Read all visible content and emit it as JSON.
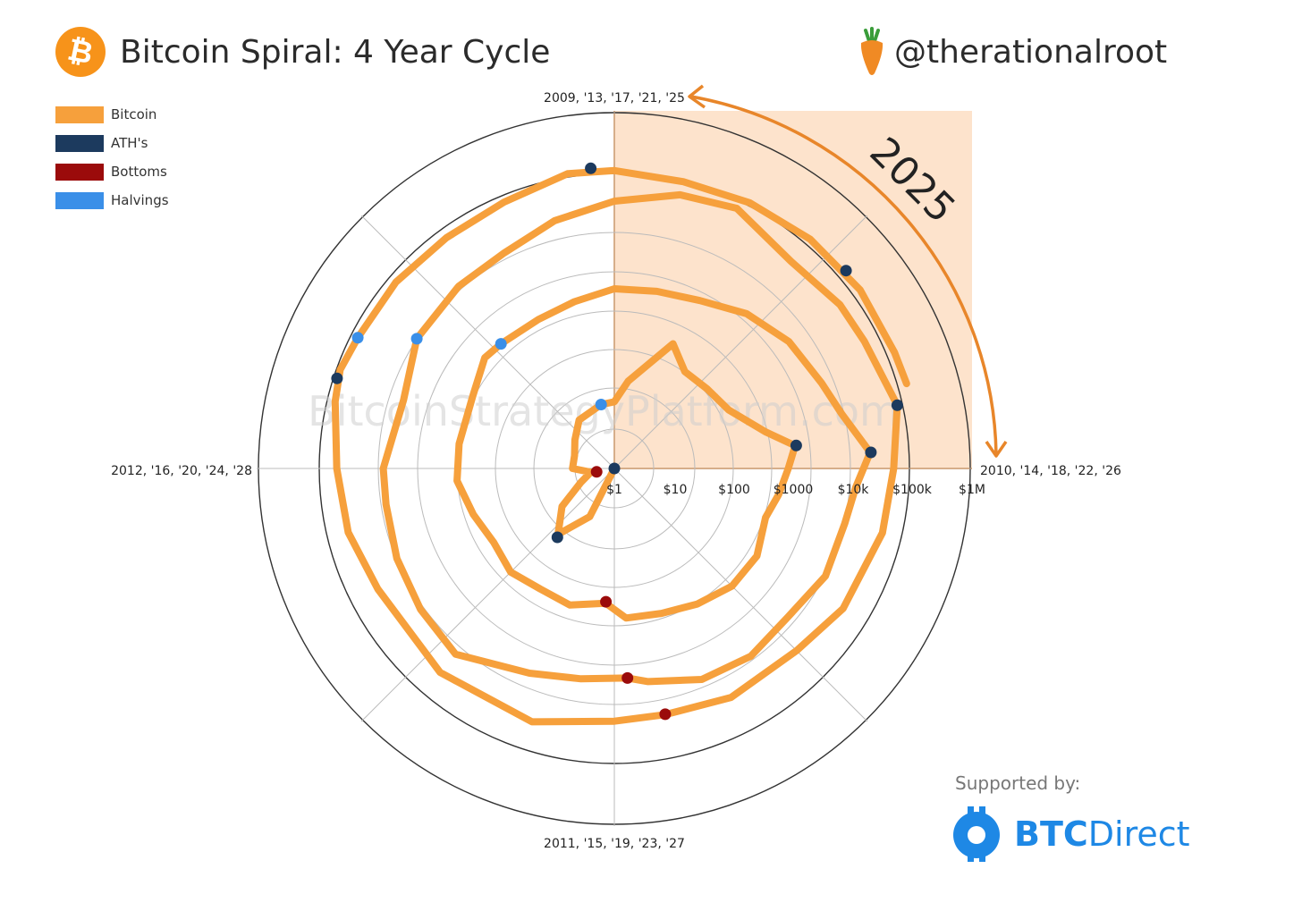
{
  "header": {
    "title": "Bitcoin Spiral: 4 Year Cycle",
    "handle": "@therationalroot",
    "btc_symbol": "₿"
  },
  "legend": [
    {
      "label": "Bitcoin",
      "color": "#f6a03c"
    },
    {
      "label": "ATH's",
      "color": "#1c3a5e"
    },
    {
      "label": "Bottoms",
      "color": "#9b0b0b"
    },
    {
      "label": "Halvings",
      "color": "#3a8fe8"
    }
  ],
  "footer": {
    "supported_by": "Supported by:",
    "brand_bold": "BTC",
    "brand_light": "Direct"
  },
  "chart_data": {
    "type": "polar-spiral",
    "title": "Bitcoin Spiral: 4 Year Cycle",
    "angular_labels": {
      "top": "2009, '13, '17, '21, '25",
      "right": "2010, '14, '18, '22, '26",
      "bottom": "2011, '15, '19, '23, '27",
      "left": "2012, '16, '20, '24, '28"
    },
    "radial_scale": "log",
    "radial_ticks": [
      "$1",
      "$10",
      "$100",
      "$1000",
      "$10k",
      "$100k",
      "$1M"
    ],
    "radial_tick_values": [
      1,
      10,
      100,
      1000,
      10000,
      100000,
      1000000
    ],
    "radial_min": 0.05,
    "annotation": "2025",
    "watermark": "BitcoinStrategyPlatform.com",
    "series": [
      {
        "name": "Bitcoin",
        "color": "#f6a03c",
        "points": [
          [
            2009.93,
            0.08
          ],
          [
            2010.0,
            0.09
          ],
          [
            2010.2,
            0.05
          ],
          [
            2010.4,
            0.07
          ],
          [
            2010.55,
            0.08
          ],
          [
            2010.7,
            0.2
          ],
          [
            2010.85,
            0.25
          ],
          [
            2011.0,
            0.3
          ],
          [
            2011.15,
            0.9
          ],
          [
            2011.3,
            8
          ],
          [
            2011.45,
            28
          ],
          [
            2011.6,
            12
          ],
          [
            2011.75,
            4
          ],
          [
            2011.9,
            2.5
          ],
          [
            2012.0,
            5
          ],
          [
            2012.2,
            5
          ],
          [
            2012.4,
            6.5
          ],
          [
            2012.6,
            10
          ],
          [
            2012.87,
            12.3
          ],
          [
            2013.0,
            13
          ],
          [
            2013.1,
            30
          ],
          [
            2013.28,
            200
          ],
          [
            2013.4,
            100
          ],
          [
            2013.55,
            110
          ],
          [
            2013.7,
            140
          ],
          [
            2013.85,
            400
          ],
          [
            2013.92,
            1100
          ],
          [
            2014.0,
            800
          ],
          [
            2014.1,
            600
          ],
          [
            2014.2,
            450
          ],
          [
            2014.35,
            620
          ],
          [
            2014.5,
            600
          ],
          [
            2014.65,
            450
          ],
          [
            2014.8,
            350
          ],
          [
            2014.95,
            320
          ],
          [
            2015.04,
            180
          ],
          [
            2015.2,
            250
          ],
          [
            2015.35,
            230
          ],
          [
            2015.5,
            280
          ],
          [
            2015.65,
            230
          ],
          [
            2015.8,
            300
          ],
          [
            2015.95,
            430
          ],
          [
            2016.1,
            420
          ],
          [
            2016.3,
            450
          ],
          [
            2016.45,
            700
          ],
          [
            2016.53,
            650
          ],
          [
            2016.7,
            620
          ],
          [
            2016.85,
            730
          ],
          [
            2017.0,
            1000
          ],
          [
            2017.15,
            1100
          ],
          [
            2017.3,
            1400
          ],
          [
            2017.45,
            2500
          ],
          [
            2017.6,
            4000
          ],
          [
            2017.75,
            5500
          ],
          [
            2017.85,
            8000
          ],
          [
            2017.96,
            19000
          ],
          [
            2018.05,
            11000
          ],
          [
            2018.15,
            9000
          ],
          [
            2018.3,
            9000
          ],
          [
            2018.45,
            6500
          ],
          [
            2018.6,
            7500
          ],
          [
            2018.75,
            6500
          ],
          [
            2018.9,
            4000
          ],
          [
            2018.96,
            3200
          ],
          [
            2019.1,
            3600
          ],
          [
            2019.25,
            5000
          ],
          [
            2019.45,
            12000
          ],
          [
            2019.6,
            10000
          ],
          [
            2019.75,
            8500
          ],
          [
            2019.9,
            7200
          ],
          [
            2020.0,
            7200
          ],
          [
            2020.2,
            5000
          ],
          [
            2020.37,
            8800
          ],
          [
            2020.55,
            10000
          ],
          [
            2020.7,
            11000
          ],
          [
            2020.85,
            18000
          ],
          [
            2021.0,
            29000
          ],
          [
            2021.15,
            50000
          ],
          [
            2021.28,
            63000
          ],
          [
            2021.45,
            35000
          ],
          [
            2021.6,
            45000
          ],
          [
            2021.7,
            48000
          ],
          [
            2021.86,
            69000
          ],
          [
            2022.0,
            46000
          ],
          [
            2022.15,
            40000
          ],
          [
            2022.35,
            30000
          ],
          [
            2022.5,
            20000
          ],
          [
            2022.7,
            19500
          ],
          [
            2022.87,
            15700
          ],
          [
            2023.0,
            16600
          ],
          [
            2023.2,
            28000
          ],
          [
            2023.45,
            30000
          ],
          [
            2023.7,
            27000
          ],
          [
            2023.85,
            37000
          ],
          [
            2024.0,
            43000
          ],
          [
            2024.15,
            62000
          ],
          [
            2024.22,
            73000
          ],
          [
            2024.3,
            64000
          ],
          [
            2024.45,
            62000
          ],
          [
            2024.6,
            58000
          ],
          [
            2024.75,
            65000
          ],
          [
            2024.9,
            96000
          ],
          [
            2025.0,
            94000
          ],
          [
            2025.15,
            84000
          ],
          [
            2025.3,
            95000
          ],
          [
            2025.45,
            108000
          ],
          [
            2025.6,
            118000
          ],
          [
            2025.75,
            115000
          ],
          [
            2025.82,
            120000
          ]
        ]
      },
      {
        "name": "ATH's",
        "color": "#1c3a5e",
        "points": [
          [
            2010.6,
            0.08
          ],
          [
            2011.44,
            31
          ],
          [
            2013.92,
            1150
          ],
          [
            2017.96,
            19500
          ],
          [
            2021.86,
            69000
          ],
          [
            2024.2,
            73500
          ],
          [
            2024.95,
            106000
          ],
          [
            2025.55,
            122000
          ]
        ]
      },
      {
        "name": "Bottoms",
        "color": "#9b0b0b",
        "points": [
          [
            2011.88,
            2.0
          ],
          [
            2015.04,
            170
          ],
          [
            2018.96,
            3200
          ],
          [
            2022.87,
            15500
          ]
        ]
      },
      {
        "name": "Halvings",
        "color": "#3a8fe8",
        "points": [
          [
            2012.87,
            12.3
          ],
          [
            2016.53,
            650
          ],
          [
            2020.37,
            8800
          ],
          [
            2024.3,
            64000
          ]
        ]
      }
    ]
  }
}
